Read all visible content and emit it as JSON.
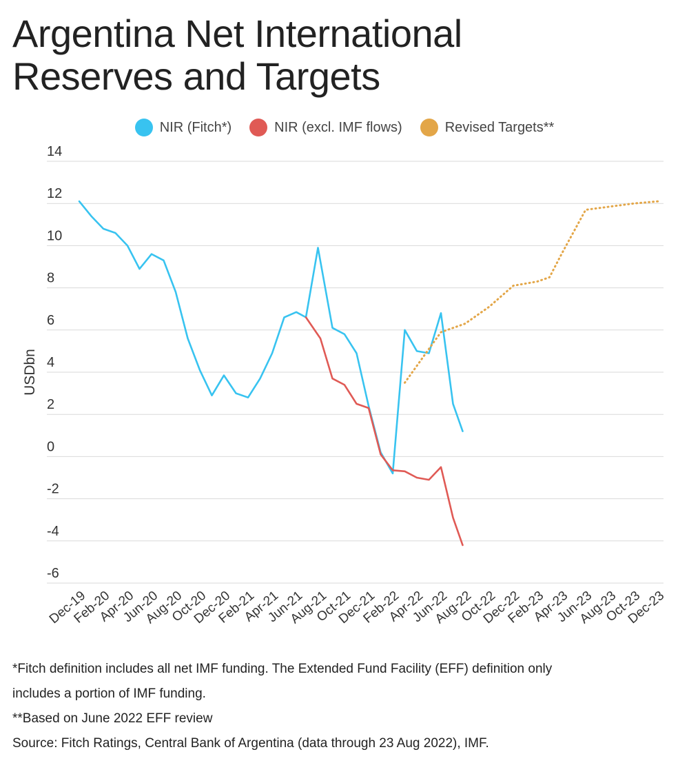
{
  "title_line1": "Argentina Net International",
  "title_line2": "Reserves and Targets",
  "legend": [
    {
      "label": "NIR (Fitch*)",
      "color": "#38c3f0"
    },
    {
      "label": "NIR (excl. IMF flows)",
      "color": "#e05a55"
    },
    {
      "label": "Revised Targets**",
      "color": "#e3a648"
    }
  ],
  "footnotes": {
    "line1": "*Fitch definition includes all net IMF funding. The Extended Fund Facility  (EFF) definition only",
    "line2": "includes a portion of IMF funding.",
    "line3": "**Based on June 2022 EFF review",
    "line4": "Source: Fitch Ratings, Central Bank of Argentina (data through 23 Aug 2022), IMF."
  },
  "chart_data": {
    "type": "line",
    "ylabel": "USDbn",
    "xlabel": "",
    "ylim": [
      -6,
      14
    ],
    "yticks": [
      14,
      12,
      10,
      8,
      6,
      4,
      2,
      0,
      -2,
      -4,
      -6
    ],
    "grid": true,
    "legend_position": "top",
    "x_tick_labels": [
      "Dec-19",
      "Feb-20",
      "Apr-20",
      "Jun-20",
      "Aug-20",
      "Oct-20",
      "Dec-20",
      "Feb-21",
      "Apr-21",
      "Jun-21",
      "Aug-21",
      "Oct-21",
      "Dec-21",
      "Feb-22",
      "Apr-22",
      "Jun-22",
      "Aug-22",
      "Oct-22",
      "Dec-22",
      "Feb-23",
      "Apr-23",
      "Jun-23",
      "Aug-23",
      "Oct-23",
      "Dec-23"
    ],
    "series": [
      {
        "name": "NIR (Fitch*)",
        "color": "#38c3f0",
        "style": "solid",
        "points": [
          [
            0,
            12.1
          ],
          [
            0.5,
            11.4
          ],
          [
            1,
            10.8
          ],
          [
            1.5,
            10.6
          ],
          [
            2,
            10.0
          ],
          [
            2.5,
            8.9
          ],
          [
            3,
            9.6
          ],
          [
            3.5,
            9.3
          ],
          [
            4,
            7.8
          ],
          [
            4.5,
            5.6
          ],
          [
            5,
            4.1
          ],
          [
            5.5,
            2.9
          ],
          [
            6,
            3.85
          ],
          [
            6.5,
            3.0
          ],
          [
            7,
            2.8
          ],
          [
            7.5,
            3.7
          ],
          [
            8,
            4.9
          ],
          [
            8.5,
            6.6
          ],
          [
            9,
            6.85
          ],
          [
            9.4,
            6.6
          ],
          [
            9.9,
            9.9
          ],
          [
            10.5,
            6.1
          ],
          [
            11,
            5.8
          ],
          [
            11.5,
            4.9
          ],
          [
            12,
            2.4
          ],
          [
            12.5,
            0.2
          ],
          [
            13,
            -0.8
          ],
          [
            13.5,
            6.0
          ],
          [
            14,
            5.0
          ],
          [
            14.5,
            4.9
          ],
          [
            15,
            6.8
          ],
          [
            15.5,
            2.5
          ],
          [
            15.9,
            1.2
          ]
        ]
      },
      {
        "name": "NIR (excl. IMF flows)",
        "color": "#e05a55",
        "style": "solid",
        "points": [
          [
            9.4,
            6.6
          ],
          [
            10,
            5.6
          ],
          [
            10.5,
            3.7
          ],
          [
            11,
            3.4
          ],
          [
            11.5,
            2.5
          ],
          [
            12,
            2.3
          ],
          [
            12.5,
            0.1
          ],
          [
            13,
            -0.65
          ],
          [
            13.5,
            -0.7
          ],
          [
            14,
            -1.0
          ],
          [
            14.5,
            -1.1
          ],
          [
            15,
            -0.5
          ],
          [
            15.5,
            -2.9
          ],
          [
            15.9,
            -4.2
          ]
        ]
      },
      {
        "name": "Revised Targets**",
        "color": "#e3a648",
        "style": "dotted",
        "points": [
          [
            13.5,
            3.5
          ],
          [
            14.5,
            5.1
          ],
          [
            15,
            5.9
          ],
          [
            16,
            6.3
          ],
          [
            17,
            7.1
          ],
          [
            18,
            8.1
          ],
          [
            19,
            8.3
          ],
          [
            19.5,
            8.5
          ],
          [
            20,
            9.6
          ],
          [
            21,
            11.7
          ],
          [
            22,
            11.85
          ],
          [
            23,
            12.0
          ],
          [
            24,
            12.1
          ]
        ]
      }
    ]
  }
}
